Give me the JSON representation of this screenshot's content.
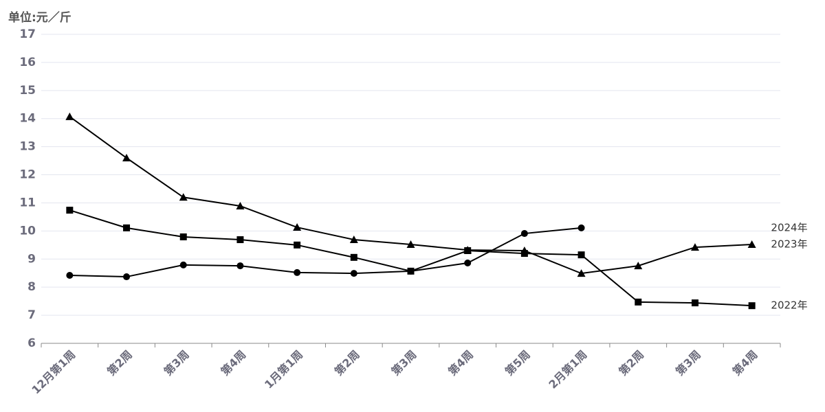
{
  "chart_data": {
    "type": "line",
    "unit_label": "单位:元／斤",
    "categories": [
      "12月第1周",
      "第2周",
      "第3周",
      "第4周",
      "1月第1周",
      "第2周",
      "第3周",
      "第4周",
      "第5周",
      "2月第1周",
      "第2周",
      "第3周",
      "第4周"
    ],
    "series": [
      {
        "name": "2024年",
        "color": "#000000",
        "marker": "circle",
        "values": [
          8.42,
          8.37,
          8.79,
          8.76,
          8.52,
          8.49,
          8.57,
          8.86,
          9.91,
          10.11,
          null,
          null,
          null
        ]
      },
      {
        "name": "2023年",
        "color": "#000000",
        "marker": "triangle",
        "values": [
          14.07,
          12.6,
          11.2,
          10.89,
          10.13,
          9.69,
          9.52,
          9.32,
          9.3,
          8.49,
          8.76,
          9.42,
          9.52
        ]
      },
      {
        "name": "2022年",
        "color": "#000000",
        "marker": "square",
        "values": [
          10.74,
          10.11,
          9.79,
          9.69,
          9.5,
          9.06,
          8.57,
          9.3,
          9.2,
          9.15,
          7.47,
          7.44,
          7.34
        ]
      }
    ],
    "ylim": [
      6,
      17
    ],
    "yticks": [
      6,
      7,
      8,
      9,
      10,
      11,
      12,
      13,
      14,
      15,
      16,
      17
    ],
    "grid": true
  }
}
